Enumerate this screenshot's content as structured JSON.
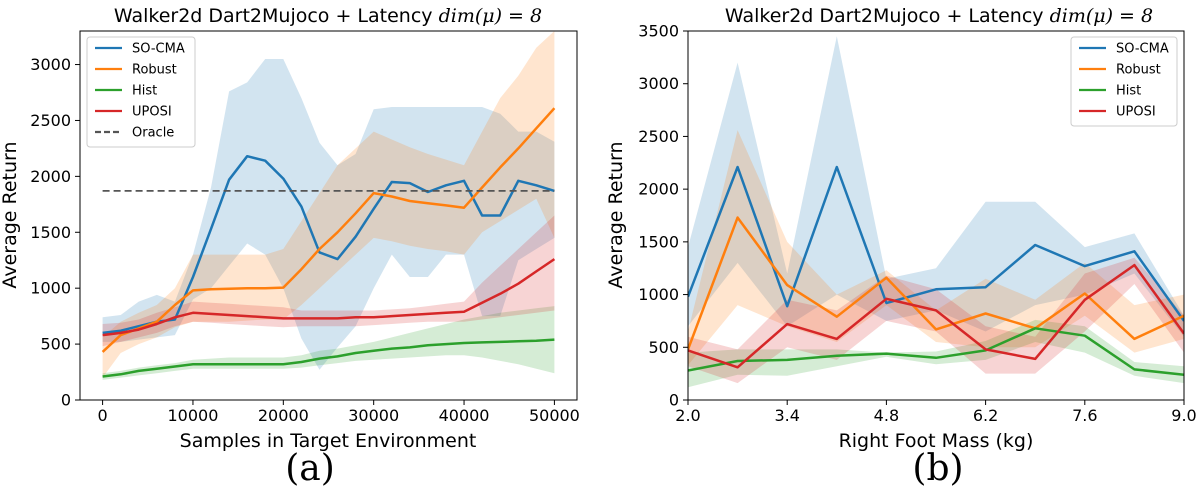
{
  "colors": {
    "so_cma": "#1f77b4",
    "robust": "#ff7f0e",
    "hist": "#2ca02c",
    "uposi": "#d62728",
    "oracle": "#555555"
  },
  "chart_data": [
    {
      "type": "line",
      "title": "Walker2d Dart2Mujoco + Latency dim(μ) = 8",
      "title_text": "Walker2d Dart2Mujoco + Latency ",
      "title_math": "dim(μ) = 8",
      "xlabel": "Samples in Target Environment",
      "ylabel": "Average Return",
      "xlim": [
        -2500,
        52500
      ],
      "ylim": [
        0,
        3300
      ],
      "xticks": [
        0,
        10000,
        20000,
        30000,
        40000,
        50000
      ],
      "xtick_labels": [
        "0",
        "10000",
        "20000",
        "30000",
        "40000",
        "50000"
      ],
      "yticks": [
        0,
        500,
        1000,
        1500,
        2000,
        2500,
        3000
      ],
      "ytick_labels": [
        "0",
        "500",
        "1000",
        "1500",
        "2000",
        "2500",
        "3000"
      ],
      "sublabel": "(a)",
      "legend": "top-left",
      "series": [
        {
          "name": "SO-CMA",
          "color_key": "so_cma",
          "x": [
            0,
            2000,
            4000,
            6000,
            8000,
            10000,
            12000,
            14000,
            16000,
            18000,
            20000,
            22000,
            24000,
            26000,
            28000,
            30000,
            32000,
            34000,
            36000,
            38000,
            40000,
            42000,
            44000,
            46000,
            48000,
            50000
          ],
          "y": [
            600,
            620,
            660,
            700,
            720,
            1100,
            1530,
            1970,
            2180,
            2140,
            1980,
            1730,
            1320,
            1260,
            1460,
            1710,
            1950,
            1940,
            1860,
            1920,
            1960,
            1650,
            1650,
            1960,
            1920,
            1870
          ],
          "lower": [
            520,
            520,
            540,
            560,
            580,
            900,
            1000,
            1200,
            1400,
            1300,
            1000,
            550,
            270,
            470,
            660,
            1000,
            1300,
            1100,
            1100,
            1300,
            1300,
            750,
            750,
            1250,
            1350,
            1450
          ],
          "upper": [
            740,
            760,
            880,
            940,
            880,
            1300,
            1900,
            2760,
            2840,
            3050,
            3050,
            2700,
            2300,
            2100,
            2200,
            2600,
            2620,
            2620,
            2620,
            2620,
            2620,
            2620,
            2560,
            2400,
            2400,
            2310
          ]
        },
        {
          "name": "Robust",
          "color_key": "robust",
          "x": [
            0,
            2000,
            4000,
            6000,
            8000,
            10000,
            12000,
            14000,
            16000,
            18000,
            20000,
            22000,
            24000,
            26000,
            28000,
            30000,
            32000,
            34000,
            36000,
            38000,
            40000,
            42000,
            44000,
            46000,
            48000,
            50000
          ],
          "y": [
            430,
            580,
            640,
            700,
            850,
            980,
            990,
            995,
            1000,
            1000,
            1005,
            1170,
            1350,
            1500,
            1670,
            1850,
            1820,
            1780,
            1760,
            1740,
            1720,
            1900,
            2080,
            2250,
            2430,
            2610
          ],
          "lower": [
            200,
            420,
            500,
            560,
            650,
            700,
            700,
            700,
            710,
            720,
            720,
            850,
            1000,
            1150,
            1300,
            1450,
            1420,
            1380,
            1350,
            1330,
            1300,
            1500,
            1600,
            1700,
            1800,
            1450
          ],
          "upper": [
            560,
            700,
            780,
            850,
            1000,
            1300,
            1300,
            1300,
            1300,
            1300,
            1350,
            1600,
            1850,
            2100,
            2250,
            2400,
            2330,
            2260,
            2200,
            2150,
            2100,
            2400,
            2700,
            2900,
            3150,
            3300
          ]
        },
        {
          "name": "Hist",
          "color_key": "hist",
          "x": [
            0,
            2000,
            4000,
            6000,
            8000,
            10000,
            12000,
            14000,
            16000,
            18000,
            20000,
            22000,
            24000,
            26000,
            28000,
            30000,
            32000,
            34000,
            36000,
            38000,
            40000,
            42000,
            44000,
            46000,
            48000,
            50000
          ],
          "y": [
            210,
            230,
            260,
            280,
            300,
            320,
            320,
            320,
            320,
            320,
            320,
            340,
            370,
            390,
            420,
            440,
            460,
            470,
            490,
            500,
            510,
            515,
            520,
            525,
            530,
            540
          ],
          "lower": [
            180,
            200,
            220,
            240,
            260,
            280,
            280,
            280,
            280,
            280,
            280,
            290,
            310,
            330,
            350,
            360,
            370,
            380,
            390,
            400,
            400,
            380,
            350,
            320,
            280,
            240
          ],
          "upper": [
            240,
            260,
            290,
            310,
            330,
            360,
            370,
            380,
            380,
            380,
            380,
            400,
            440,
            460,
            490,
            520,
            560,
            600,
            640,
            680,
            720,
            750,
            780,
            800,
            820,
            840
          ]
        },
        {
          "name": "UPOSI",
          "color_key": "uposi",
          "x": [
            0,
            2000,
            4000,
            6000,
            8000,
            10000,
            12000,
            14000,
            16000,
            18000,
            20000,
            22000,
            24000,
            26000,
            28000,
            30000,
            32000,
            34000,
            36000,
            38000,
            40000,
            42000,
            44000,
            46000,
            48000,
            50000
          ],
          "y": [
            580,
            600,
            630,
            680,
            740,
            780,
            770,
            760,
            750,
            740,
            730,
            730,
            730,
            730,
            740,
            740,
            750,
            760,
            770,
            780,
            790,
            870,
            950,
            1040,
            1150,
            1260
          ],
          "lower": [
            480,
            520,
            560,
            600,
            660,
            700,
            690,
            680,
            670,
            660,
            650,
            660,
            660,
            660,
            660,
            670,
            680,
            690,
            700,
            700,
            700,
            720,
            740,
            760,
            780,
            800
          ],
          "upper": [
            680,
            690,
            720,
            780,
            830,
            880,
            870,
            860,
            850,
            840,
            830,
            800,
            800,
            800,
            800,
            800,
            810,
            820,
            840,
            860,
            880,
            1050,
            1200,
            1350,
            1500,
            1650
          ]
        },
        {
          "name": "Oracle",
          "color_key": "oracle",
          "dashed": true,
          "x": [
            0,
            50000
          ],
          "y": [
            1870,
            1870
          ]
        }
      ]
    },
    {
      "type": "line",
      "title": "Walker2d Dart2Mujoco + Latency dim(μ) = 8",
      "title_text": "Walker2d Dart2Mujoco + Latency ",
      "title_math": "dim(μ) = 8",
      "xlabel": "Right Foot Mass (kg)",
      "ylabel": "Average Return",
      "xlim": [
        2.0,
        9.0
      ],
      "ylim": [
        0,
        3500
      ],
      "xticks": [
        2.0,
        3.4,
        4.8,
        6.2,
        7.6,
        9.0
      ],
      "xtick_labels": [
        "2.0",
        "3.4",
        "4.8",
        "6.2",
        "7.6",
        "9.0"
      ],
      "yticks": [
        0,
        500,
        1000,
        1500,
        2000,
        2500,
        3000,
        3500
      ],
      "ytick_labels": [
        "0",
        "500",
        "1000",
        "1500",
        "2000",
        "2500",
        "3000",
        "3500"
      ],
      "sublabel": "(b)",
      "legend": "top-right",
      "series": [
        {
          "name": "SO-CMA",
          "color_key": "so_cma",
          "x": [
            2.0,
            2.7,
            3.4,
            4.1,
            4.8,
            5.5,
            6.2,
            6.9,
            7.6,
            8.3,
            9.0
          ],
          "y": [
            980,
            2210,
            890,
            2210,
            920,
            1050,
            1070,
            1470,
            1270,
            1410,
            750
          ],
          "lower": [
            700,
            1300,
            700,
            1000,
            750,
            850,
            650,
            900,
            1000,
            1200,
            600
          ],
          "upper": [
            1450,
            3200,
            1200,
            3450,
            1150,
            1250,
            1880,
            1880,
            1450,
            1580,
            800
          ]
        },
        {
          "name": "Robust",
          "color_key": "robust",
          "x": [
            2.0,
            2.7,
            3.4,
            4.1,
            4.8,
            5.5,
            6.2,
            6.9,
            7.6,
            8.3,
            9.0
          ],
          "y": [
            480,
            1730,
            1090,
            790,
            1160,
            670,
            820,
            680,
            1010,
            580,
            800
          ],
          "lower": [
            330,
            900,
            700,
            550,
            900,
            550,
            500,
            500,
            800,
            450,
            580
          ],
          "upper": [
            650,
            2560,
            1500,
            1000,
            1230,
            850,
            1150,
            950,
            1300,
            900,
            1000
          ]
        },
        {
          "name": "Hist",
          "color_key": "hist",
          "x": [
            2.0,
            2.7,
            3.4,
            4.1,
            4.8,
            5.5,
            6.2,
            6.9,
            7.6,
            8.3,
            9.0
          ],
          "y": [
            280,
            370,
            380,
            420,
            440,
            400,
            470,
            680,
            610,
            290,
            240
          ],
          "lower": [
            120,
            240,
            230,
            320,
            410,
            340,
            380,
            550,
            450,
            230,
            160
          ],
          "upper": [
            450,
            480,
            480,
            480,
            450,
            460,
            560,
            760,
            700,
            360,
            320
          ]
        },
        {
          "name": "UPOSI",
          "color_key": "uposi",
          "x": [
            2.0,
            2.7,
            3.4,
            4.1,
            4.8,
            5.5,
            6.2,
            6.9,
            7.6,
            8.3,
            9.0
          ],
          "y": [
            470,
            310,
            720,
            580,
            960,
            850,
            480,
            390,
            950,
            1280,
            630
          ],
          "lower": [
            320,
            160,
            500,
            380,
            750,
            650,
            250,
            250,
            650,
            1100,
            450
          ],
          "upper": [
            600,
            480,
            950,
            850,
            1180,
            1050,
            700,
            600,
            1200,
            1350,
            800
          ]
        }
      ]
    }
  ]
}
